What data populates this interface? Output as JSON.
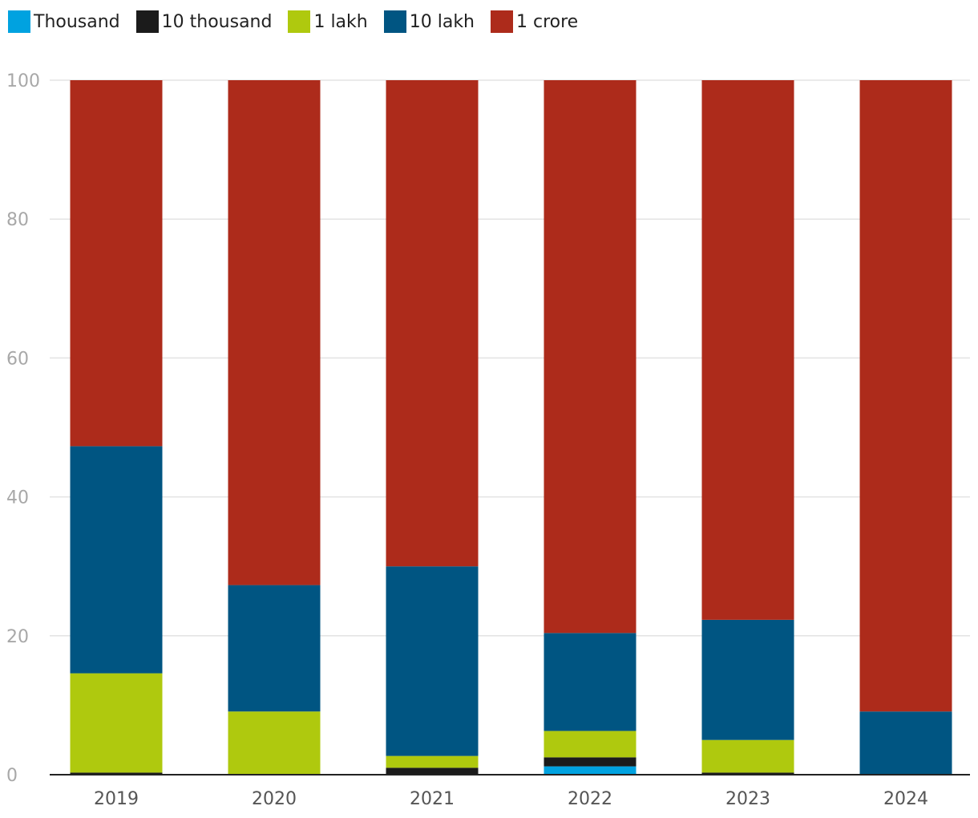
{
  "chart_data": {
    "type": "bar",
    "stacked": true,
    "categories": [
      "2019",
      "2020",
      "2021",
      "2022",
      "2023",
      "2024"
    ],
    "series": [
      {
        "name": "Thousand",
        "color": "#00a2e0",
        "values": [
          0,
          0,
          0,
          1.2,
          0,
          0
        ]
      },
      {
        "name": "10 thousand",
        "color": "#1b1b1b",
        "values": [
          0.3,
          0,
          1.0,
          1.3,
          0.3,
          0
        ]
      },
      {
        "name": "1 lakh",
        "color": "#afc90e",
        "values": [
          14.3,
          9.1,
          1.7,
          3.8,
          4.7,
          0
        ]
      },
      {
        "name": "10 lakh",
        "color": "#005582",
        "values": [
          32.7,
          18.2,
          27.3,
          14.1,
          17.3,
          9.1
        ]
      },
      {
        "name": "1 crore",
        "color": "#ad2b1b",
        "values": [
          52.7,
          72.7,
          70.0,
          79.6,
          77.7,
          90.9
        ]
      }
    ],
    "yticks": [
      "0",
      "20",
      "40",
      "60",
      "80",
      "100"
    ],
    "ylim": [
      0,
      100
    ],
    "grid": true,
    "legend_position": "top-left",
    "title": "",
    "xlabel": "",
    "ylabel": ""
  }
}
